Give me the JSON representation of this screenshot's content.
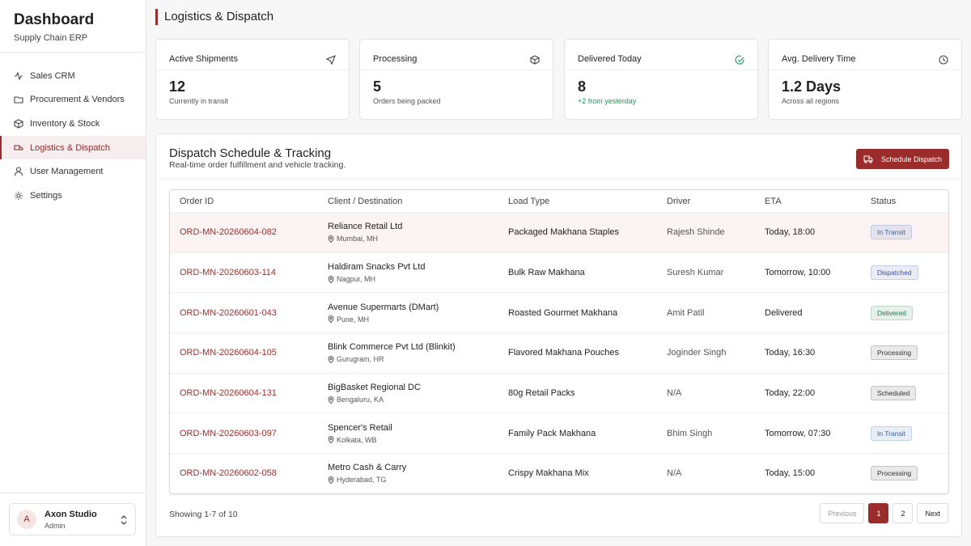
{
  "sidebar": {
    "title": "Dashboard",
    "subtitle": "Supply Chain ERP",
    "nav": [
      "Sales CRM",
      "Procurement & Vendors",
      "Inventory & Stock",
      "Logistics & Dispatch",
      "User Management",
      "Settings"
    ],
    "user": {
      "initial": "A",
      "name": "Axon Studio",
      "role": "Admin"
    }
  },
  "header": {
    "title": "Logistics & Dispatch"
  },
  "stats": [
    {
      "label": "Active Shipments",
      "value": "12",
      "note": "Currently in transit"
    },
    {
      "label": "Processing",
      "value": "5",
      "note": "Orders being packed"
    },
    {
      "label": "Delivered Today",
      "value": "8",
      "note": "+2 from yesterday"
    },
    {
      "label": "Avg. Delivery Time",
      "value": "1.2 Days",
      "note": "Across all regions"
    }
  ],
  "panel": {
    "title": "Dispatch Schedule & Tracking",
    "subtitle": "Real-time order fulfillment and vehicle tracking.",
    "button": "Schedule Dispatch"
  },
  "table": {
    "columns": [
      "Order ID",
      "Client / Destination",
      "Load Type",
      "Driver",
      "ETA",
      "Status"
    ],
    "rows": [
      [
        "ORD-MN-20260604-082",
        "Reliance Retail Ltd",
        "Mumbai, MH",
        "Packaged Makhana Staples",
        "Rajesh Shinde",
        "Today, 18:00",
        {
          "text": "In Transit",
          "color": "#2f5fb0"
        }
      ],
      [
        "ORD-MN-20260603-114",
        "Haldiram Snacks Pvt Ltd",
        "Nagpur, MH",
        "Bulk Raw Makhana",
        "Suresh Kumar",
        "Tomorrow, 10:00",
        {
          "text": "Dispatched",
          "color": "#3c4fa0"
        }
      ],
      [
        "ORD-MN-20260601-043",
        "Avenue Supermarts (DMart)",
        "Pune, MH",
        "Roasted Gourmet Makhana",
        "Amit Patil",
        "Delivered",
        {
          "text": "Delivered",
          "color": "#1f7a4a"
        }
      ],
      [
        "ORD-MN-20260604-105",
        "Blink Commerce Pvt Ltd (Blinkit)",
        "Gurugram, HR",
        "Flavored Makhana Pouches",
        "Joginder Singh",
        "Today, 16:30",
        {
          "text": "Processing",
          "color": "#333333"
        }
      ],
      [
        "ORD-MN-20260604-131",
        "BigBasket Regional DC",
        "Bengaluru, KA",
        "80g Retail Packs",
        "N/A",
        "Today, 22:00",
        {
          "text": "Scheduled",
          "color": "#333333"
        }
      ],
      [
        "ORD-MN-20260603-097",
        "Spencer's Retail",
        "Kolkata, WB",
        "Family Pack Makhana",
        "Bhim Singh",
        "Tomorrow, 07:30",
        {
          "text": "In Transit",
          "color": "#2f5fb0"
        }
      ],
      [
        "ORD-MN-20260602-058",
        "Metro Cash & Carry",
        "Hyderabad, TG",
        "Crispy Makhana Mix",
        "N/A",
        "Today, 15:00",
        {
          "text": "Processing",
          "color": "#333333"
        }
      ]
    ]
  },
  "footer": {
    "summary": "Showing 1-7 of 10",
    "pagination": [
      "Previous",
      "1",
      "2",
      "Next"
    ]
  }
}
